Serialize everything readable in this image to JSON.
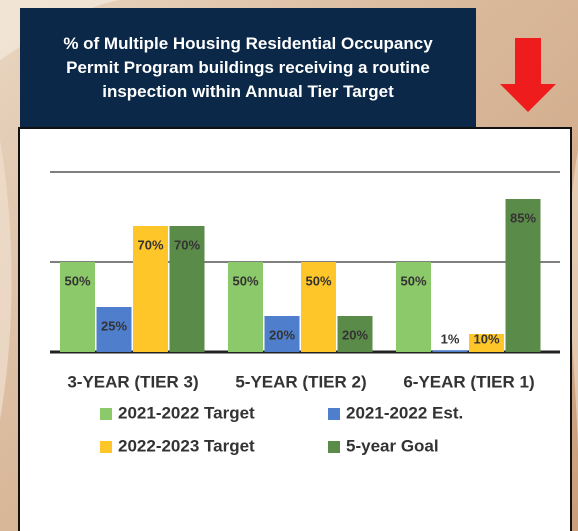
{
  "chart_data": {
    "type": "bar",
    "title": "% of Multiple Housing Residential Occupancy Permit Program buildings receiving a routine inspection within Annual Tier Target",
    "categories": [
      "3-YEAR (TIER 3)",
      "5-YEAR (TIER 2)",
      "6-YEAR (TIER 1)"
    ],
    "series": [
      {
        "name": "2021-2022 Target",
        "color": "#8cc96a",
        "values": [
          50,
          50,
          50
        ],
        "value_labels": [
          "50%",
          "50%",
          "50%"
        ]
      },
      {
        "name": "2021-2022 Est.",
        "color": "#4f7fcc",
        "values": [
          25,
          20,
          1
        ],
        "value_labels": [
          "25%",
          "20%",
          "1%"
        ]
      },
      {
        "name": "2022-2023 Target",
        "color": "#ffc629",
        "values": [
          70,
          50,
          10
        ],
        "value_labels": [
          "70%",
          "50%",
          "10%"
        ]
      },
      {
        "name": "5-year Goal",
        "color": "#5b8b48",
        "values": [
          70,
          20,
          85
        ],
        "value_labels": [
          "70%",
          "20%",
          "85%"
        ]
      }
    ],
    "ylim": [
      0,
      100
    ],
    "yticks": [
      0,
      50,
      100
    ],
    "grid": true
  }
}
